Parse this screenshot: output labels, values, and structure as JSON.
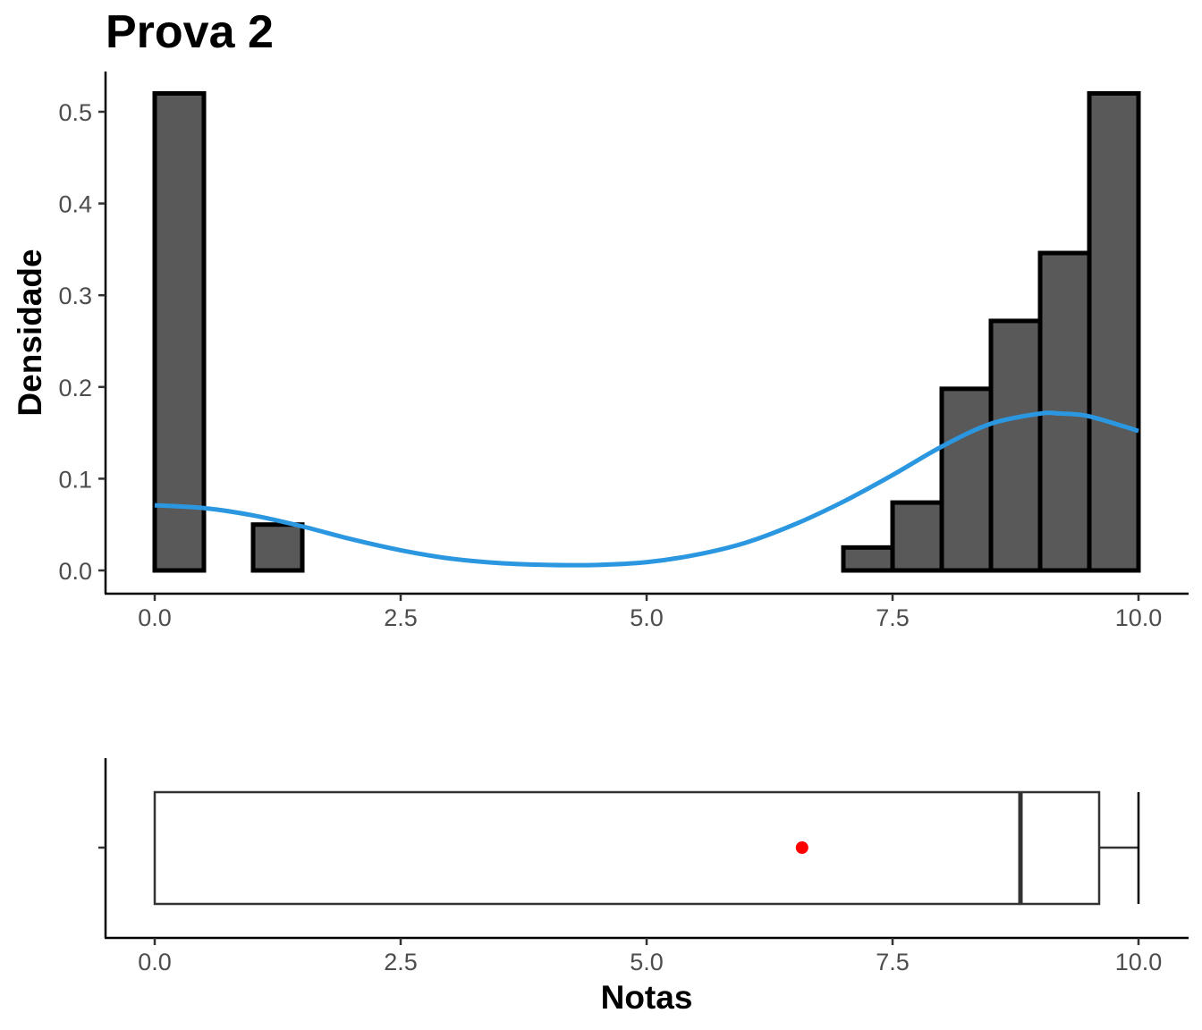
{
  "chart_data": [
    {
      "type": "histogram",
      "title": "Prova 2",
      "xlabel": "",
      "ylabel": "Densidade",
      "xlim": [
        0,
        10
      ],
      "ylim": [
        0,
        0.5
      ],
      "x_ticks": [
        "0.0",
        "2.5",
        "5.0",
        "7.5",
        "10.0"
      ],
      "y_ticks": [
        "0.0",
        "0.1",
        "0.2",
        "0.3",
        "0.4",
        "0.5"
      ],
      "bin_width": 0.5,
      "bins": [
        {
          "x0": 0.0,
          "x1": 0.5,
          "density": 0.52
        },
        {
          "x0": 0.5,
          "x1": 1.0,
          "density": 0.0
        },
        {
          "x0": 1.0,
          "x1": 1.5,
          "density": 0.05
        },
        {
          "x0": 1.5,
          "x1": 2.0,
          "density": 0.0
        },
        {
          "x0": 2.0,
          "x1": 2.5,
          "density": 0.0
        },
        {
          "x0": 2.5,
          "x1": 3.0,
          "density": 0.0
        },
        {
          "x0": 3.0,
          "x1": 3.5,
          "density": 0.0
        },
        {
          "x0": 3.5,
          "x1": 4.0,
          "density": 0.0
        },
        {
          "x0": 4.0,
          "x1": 4.5,
          "density": 0.0
        },
        {
          "x0": 4.5,
          "x1": 5.0,
          "density": 0.0
        },
        {
          "x0": 5.0,
          "x1": 5.5,
          "density": 0.0
        },
        {
          "x0": 5.5,
          "x1": 6.0,
          "density": 0.0
        },
        {
          "x0": 6.0,
          "x1": 6.5,
          "density": 0.0
        },
        {
          "x0": 6.5,
          "x1": 7.0,
          "density": 0.0
        },
        {
          "x0": 7.0,
          "x1": 7.5,
          "density": 0.025
        },
        {
          "x0": 7.5,
          "x1": 8.0,
          "density": 0.074
        },
        {
          "x0": 8.0,
          "x1": 8.5,
          "density": 0.198
        },
        {
          "x0": 8.5,
          "x1": 9.0,
          "density": 0.272
        },
        {
          "x0": 9.0,
          "x1": 9.5,
          "density": 0.346
        },
        {
          "x0": 9.5,
          "x1": 10.0,
          "density": 0.52
        }
      ],
      "density_curve": {
        "color": "#2b97e0",
        "x": [
          0.0,
          0.5,
          1.0,
          1.5,
          2.0,
          2.5,
          3.0,
          3.5,
          4.0,
          4.5,
          5.0,
          5.5,
          6.0,
          6.5,
          7.0,
          7.5,
          8.0,
          8.5,
          9.0,
          9.2,
          9.5,
          10.0
        ],
        "y": [
          0.071,
          0.068,
          0.06,
          0.048,
          0.034,
          0.022,
          0.013,
          0.008,
          0.006,
          0.006,
          0.009,
          0.017,
          0.03,
          0.05,
          0.075,
          0.104,
          0.135,
          0.16,
          0.171,
          0.171,
          0.168,
          0.152
        ]
      },
      "bar_fill": "#595959",
      "bar_stroke": "#000000"
    },
    {
      "type": "boxplot",
      "xlabel": "Notas",
      "xlim": [
        0,
        10
      ],
      "x_ticks": [
        "0.0",
        "2.5",
        "5.0",
        "7.5",
        "10.0"
      ],
      "min": 0.0,
      "q1": 0.0,
      "median": 8.8,
      "q3": 9.6,
      "max": 10.0,
      "mean": 6.58,
      "mean_color": "#ff0000"
    }
  ]
}
